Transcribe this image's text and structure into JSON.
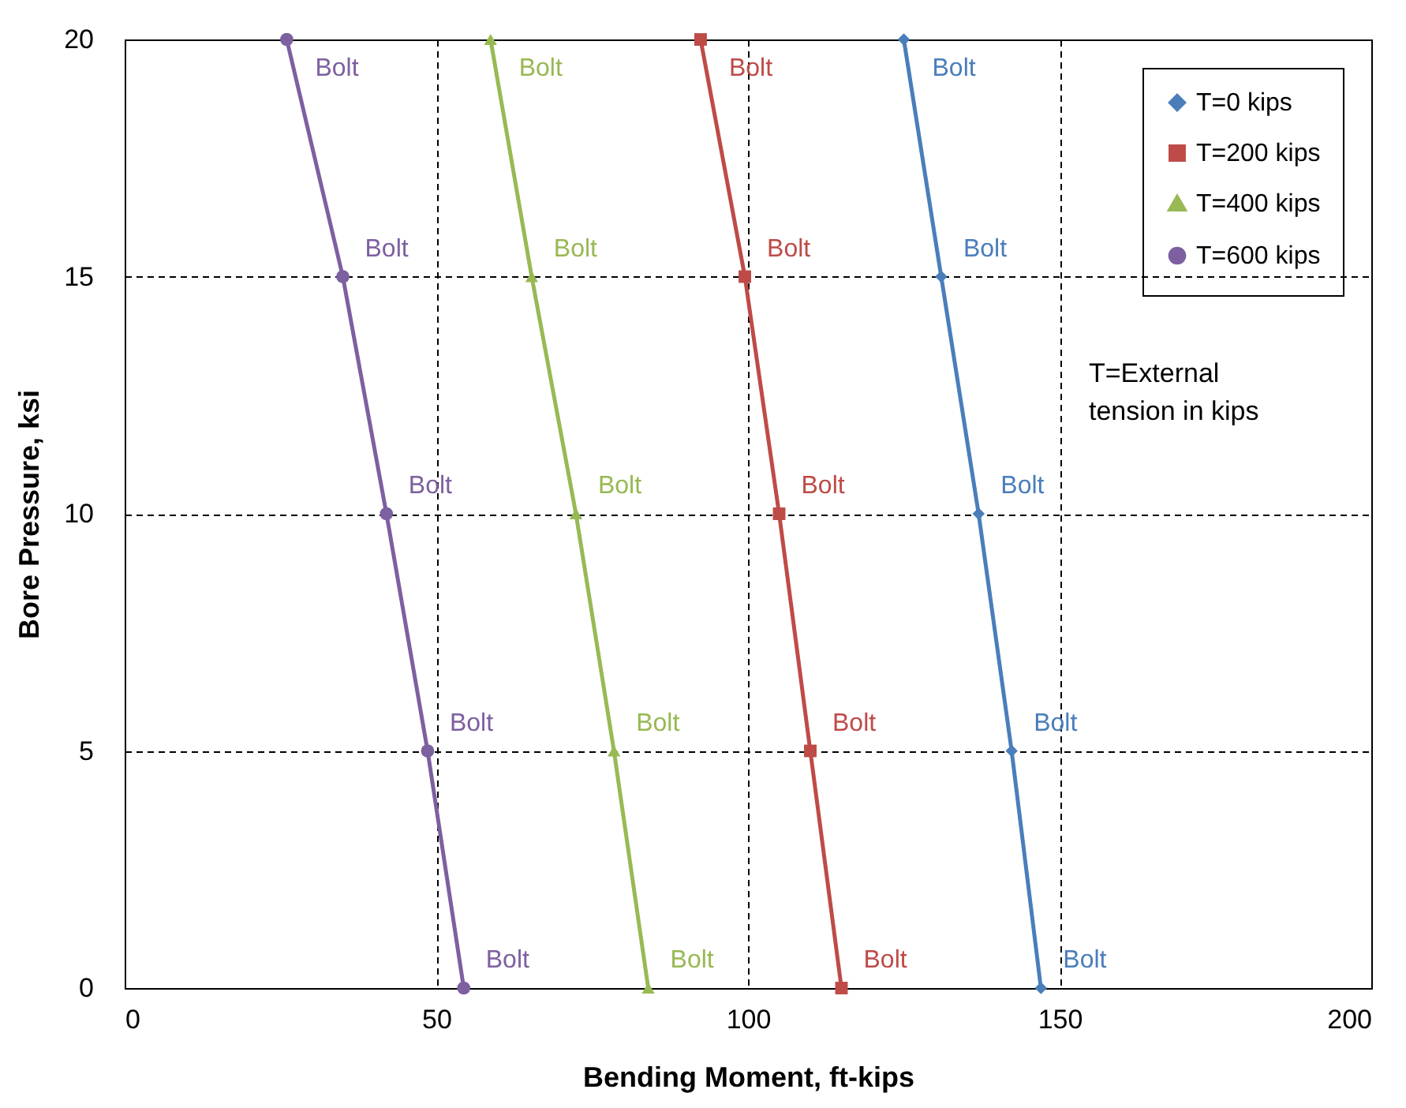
{
  "chart_data": {
    "type": "line",
    "xlabel": "Bending Moment, ft-kips",
    "ylabel": "Bore Pressure, ksi",
    "xlim": [
      0,
      200
    ],
    "xticks": [
      0,
      50,
      100,
      150,
      200
    ],
    "ylim": [
      0,
      20
    ],
    "yticks": [
      0,
      5,
      10,
      15,
      20
    ],
    "grid": true,
    "legend": "top right",
    "line_style": "solid",
    "series": [
      {
        "name": "T=0 kips",
        "color": "#4a7ebb",
        "marker": "diamond",
        "x": [
          125,
          131,
          137,
          142.3,
          147
        ],
        "values": [
          20,
          15,
          10,
          5,
          0
        ]
      },
      {
        "name": "T=200 kips",
        "color": "#be4b48",
        "marker": "square",
        "x": [
          92.4,
          99.5,
          105,
          110,
          115
        ],
        "values": [
          20,
          15,
          10,
          5,
          0
        ]
      },
      {
        "name": "T=400 kips",
        "color": "#98b954",
        "marker": "triangle",
        "x": [
          58.7,
          65.3,
          72.4,
          78.5,
          84
        ],
        "values": [
          20,
          15,
          10,
          5,
          0
        ]
      },
      {
        "name": "T=600 kips",
        "color": "#7d60a0",
        "marker": "circle",
        "x": [
          26,
          35,
          42,
          48.6,
          54.4
        ],
        "values": [
          20,
          15,
          10,
          5,
          0
        ]
      }
    ],
    "annotations": [
      {
        "text": "Bolt",
        "x": 125,
        "y": 20
      },
      {
        "text": "Bolt",
        "x": 131,
        "y": 15
      },
      {
        "text": "Bolt",
        "x": 137,
        "y": 10
      },
      {
        "text": "Bolt",
        "x": 142.3,
        "y": 5
      },
      {
        "text": "Bolt",
        "x": 147,
        "y": 0
      },
      {
        "text": "Bolt",
        "x": 92.4,
        "y": 20
      },
      {
        "text": "Bolt",
        "x": 99.5,
        "y": 15
      },
      {
        "text": "Bolt",
        "x": 105,
        "y": 10
      },
      {
        "text": "Bolt",
        "x": 110,
        "y": 5
      },
      {
        "text": "Bolt",
        "x": 115,
        "y": 0
      },
      {
        "text": "Bolt",
        "x": 58.7,
        "y": 20
      },
      {
        "text": "Bolt",
        "x": 65.3,
        "y": 15
      },
      {
        "text": "Bolt",
        "x": 72.4,
        "y": 10
      },
      {
        "text": "Bolt",
        "x": 78.5,
        "y": 5
      },
      {
        "text": "Bolt",
        "x": 84,
        "y": 0
      },
      {
        "text": "Bolt",
        "x": 26,
        "y": 20
      },
      {
        "text": "Bolt",
        "x": 35,
        "y": 15
      },
      {
        "text": "Bolt",
        "x": 42,
        "y": 10
      },
      {
        "text": "Bolt",
        "x": 48.6,
        "y": 5
      },
      {
        "text": "Bolt",
        "x": 54.4,
        "y": 0
      },
      "T=External tension in kips"
    ]
  }
}
